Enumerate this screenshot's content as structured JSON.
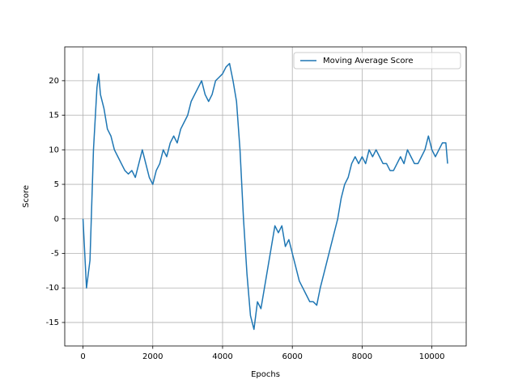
{
  "chart_data": {
    "type": "line",
    "x_label": "Epochs",
    "y_label": "Score",
    "x": [
      0,
      100,
      200,
      300,
      400,
      450,
      500,
      600,
      700,
      800,
      900,
      1000,
      1100,
      1200,
      1300,
      1400,
      1500,
      1600,
      1700,
      1800,
      1900,
      2000,
      2100,
      2200,
      2300,
      2400,
      2500,
      2600,
      2700,
      2800,
      2900,
      3000,
      3100,
      3200,
      3300,
      3400,
      3500,
      3600,
      3700,
      3800,
      3900,
      4000,
      4100,
      4200,
      4300,
      4400,
      4500,
      4600,
      4700,
      4800,
      4900,
      5000,
      5100,
      5200,
      5300,
      5400,
      5500,
      5600,
      5700,
      5800,
      5900,
      6000,
      6100,
      6200,
      6300,
      6400,
      6500,
      6600,
      6700,
      6800,
      6900,
      7000,
      7100,
      7200,
      7300,
      7400,
      7500,
      7600,
      7700,
      7800,
      7900,
      8000,
      8100,
      8200,
      8300,
      8400,
      8500,
      8600,
      8700,
      8800,
      8900,
      9000,
      9100,
      9200,
      9300,
      9400,
      9500,
      9600,
      9700,
      9800,
      9900,
      10000,
      10100,
      10200,
      10300,
      10400,
      10450
    ],
    "series": [
      {
        "name": "Moving Average Score",
        "color": "#1f77b4",
        "values": [
          0,
          -10,
          -6,
          10,
          19,
          21,
          18,
          16,
          13,
          12,
          10,
          9,
          8,
          7,
          6.5,
          7,
          6,
          8,
          10,
          8,
          6,
          5,
          7,
          8,
          10,
          9,
          11,
          12,
          11,
          13,
          14,
          15,
          17,
          18,
          19,
          20,
          18,
          17,
          18,
          20,
          20.5,
          21,
          22,
          22.5,
          20,
          17,
          10,
          0,
          -8,
          -14,
          -16,
          -12,
          -13,
          -10,
          -7,
          -4,
          -1,
          -2,
          -1,
          -4,
          -3,
          -5,
          -7,
          -9,
          -10,
          -11,
          -12,
          -12,
          -12.5,
          -10,
          -8,
          -6,
          -4,
          -2,
          0,
          3,
          5,
          6,
          8,
          9,
          8,
          9,
          8,
          10,
          9,
          10,
          9,
          8,
          8,
          7,
          7,
          8,
          9,
          8,
          10,
          9,
          8,
          8,
          9,
          10,
          12,
          10,
          9,
          10,
          11,
          11,
          8
        ]
      }
    ],
    "xlim": [
      -523,
      10983
    ],
    "ylim": [
      -18.4,
      24.9
    ],
    "xticks": [
      0,
      2000,
      4000,
      6000,
      8000,
      10000
    ],
    "yticks": [
      -15,
      -10,
      -5,
      0,
      5,
      10,
      15,
      20
    ],
    "grid": true,
    "legend": "upper right"
  }
}
